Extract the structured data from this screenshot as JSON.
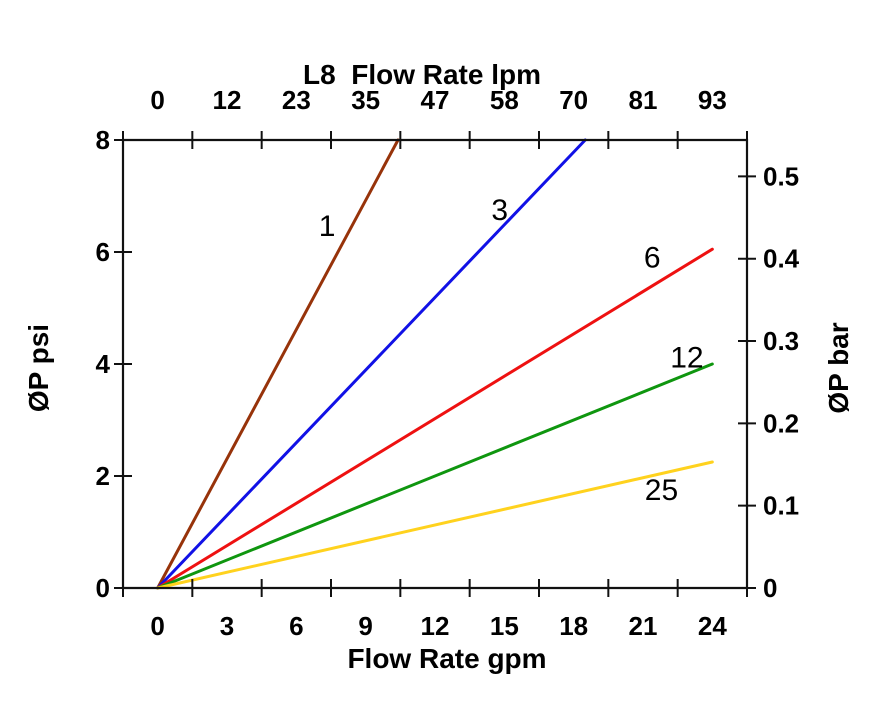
{
  "figure_title": "L8  Flow Rate lpm",
  "chart_data": {
    "type": "line",
    "title": "L8  Flow Rate lpm",
    "grid": false,
    "legend": "none (inline line labels)",
    "top_axis": {
      "label": "L8  Flow Rate lpm",
      "unit": "lpm",
      "tick_labels": [
        "0",
        "12",
        "23",
        "35",
        "47",
        "58",
        "70",
        "81",
        "93"
      ]
    },
    "bottom_axis": {
      "label": "Flow Rate gpm",
      "unit": "gpm",
      "tick_labels": [
        "0",
        "3",
        "6",
        "9",
        "12",
        "15",
        "18",
        "21",
        "24"
      ],
      "tick_values_gpm": [
        0,
        3,
        6,
        9,
        12,
        15,
        18,
        21,
        24
      ],
      "range_gpm": [
        0,
        24
      ]
    },
    "left_axis": {
      "label": "ØP psi",
      "unit": "psi",
      "tick_labels": [
        "0",
        "2",
        "4",
        "6",
        "8"
      ],
      "tick_values_psi": [
        0,
        2,
        4,
        6,
        8
      ],
      "range_psi": [
        0,
        8
      ]
    },
    "right_axis": {
      "label": "ØP bar",
      "unit": "bar",
      "tick_labels": [
        "0",
        "0.1",
        "0.2",
        "0.3",
        "0.4",
        "0.5"
      ],
      "tick_values_bar": [
        0,
        0.1,
        0.2,
        0.3,
        0.4,
        0.5
      ],
      "psi_per_bar": 14.7
    },
    "series": [
      {
        "name": "1",
        "color": "#97330A",
        "slope_psi_per_gpm": 0.769,
        "points_gpm_psi": [
          [
            0,
            0
          ],
          [
            10.4,
            8
          ]
        ],
        "label_pos_gpm_psi": [
          7.33,
          6.46
        ]
      },
      {
        "name": "3",
        "color": "#1111E6",
        "slope_psi_per_gpm": 0.432,
        "points_gpm_psi": [
          [
            0,
            0
          ],
          [
            18.5,
            8
          ]
        ],
        "label_pos_gpm_psi": [
          14.8,
          6.75
        ]
      },
      {
        "name": "6",
        "color": "#EE1111",
        "slope_psi_per_gpm": 0.252,
        "points_gpm_psi": [
          [
            0,
            0
          ],
          [
            24,
            6.05
          ]
        ],
        "label_pos_gpm_psi": [
          21.4,
          5.9
        ]
      },
      {
        "name": "12",
        "color": "#0F960F",
        "slope_psi_per_gpm": 0.167,
        "points_gpm_psi": [
          [
            0,
            0
          ],
          [
            24,
            4.0
          ]
        ],
        "label_pos_gpm_psi": [
          22.9,
          4.12
        ]
      },
      {
        "name": "25",
        "color": "#FFD21E",
        "slope_psi_per_gpm": 0.094,
        "points_gpm_psi": [
          [
            0,
            0
          ],
          [
            24,
            2.25
          ]
        ],
        "label_pos_gpm_psi": [
          21.8,
          1.75
        ]
      }
    ],
    "colors": {
      "axis": "#111111",
      "text": "#000000",
      "background": "#ffffff"
    }
  }
}
